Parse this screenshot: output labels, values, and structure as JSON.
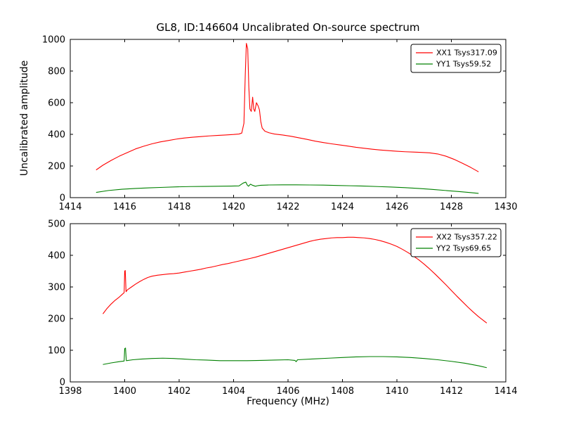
{
  "figure": {
    "title": "GL8, ID:146604 Uncalibrated On-source spectrum",
    "xlabel": "Frequency (MHz)",
    "ylabel": "Uncalibrated amplitude"
  },
  "chart_data": [
    {
      "type": "line",
      "title": "GL8, ID:146604 Uncalibrated On-source spectrum",
      "xlabel": "",
      "ylabel": "Uncalibrated amplitude",
      "xlim": [
        1414,
        1430
      ],
      "ylim": [
        0,
        1000
      ],
      "xticks": [
        1414,
        1416,
        1418,
        1420,
        1422,
        1424,
        1426,
        1428,
        1430
      ],
      "yticks": [
        0,
        200,
        400,
        600,
        800,
        1000
      ],
      "grid": false,
      "legend_position": "upper right",
      "series": [
        {
          "name": "XX1 Tsys317.09",
          "color": "#ff0000",
          "x": [
            1414.95,
            1415.2,
            1415.5,
            1415.8,
            1416.1,
            1416.4,
            1416.7,
            1417.0,
            1417.3,
            1417.6,
            1417.9,
            1418.2,
            1418.5,
            1418.8,
            1419.1,
            1419.4,
            1419.7,
            1420.0,
            1420.2,
            1420.3,
            1420.38,
            1420.43,
            1420.47,
            1420.52,
            1420.56,
            1420.6,
            1420.65,
            1420.7,
            1420.74,
            1420.78,
            1420.84,
            1420.9,
            1420.95,
            1421.0,
            1421.05,
            1421.15,
            1421.3,
            1421.5,
            1421.8,
            1422.1,
            1422.4,
            1422.7,
            1423.0,
            1423.3,
            1423.6,
            1423.9,
            1424.2,
            1424.5,
            1424.8,
            1425.1,
            1425.4,
            1425.7,
            1426.0,
            1426.3,
            1426.6,
            1426.9,
            1427.2,
            1427.5,
            1427.8,
            1428.1,
            1428.4,
            1428.7,
            1429.0
          ],
          "y": [
            175,
            205,
            235,
            262,
            285,
            308,
            325,
            340,
            352,
            361,
            370,
            377,
            382,
            386,
            390,
            393,
            396,
            399,
            402,
            408,
            470,
            780,
            975,
            940,
            700,
            560,
            545,
            635,
            560,
            545,
            600,
            580,
            555,
            480,
            440,
            420,
            410,
            402,
            396,
            388,
            378,
            368,
            357,
            348,
            340,
            333,
            326,
            318,
            312,
            306,
            301,
            297,
            293,
            290,
            288,
            286,
            283,
            276,
            262,
            242,
            218,
            192,
            163
          ]
        },
        {
          "name": "YY1 Tsys59.52",
          "color": "#008000",
          "x": [
            1414.95,
            1415.4,
            1415.9,
            1416.4,
            1416.9,
            1417.4,
            1417.9,
            1418.4,
            1418.9,
            1419.4,
            1419.9,
            1420.2,
            1420.35,
            1420.45,
            1420.5,
            1420.55,
            1420.62,
            1420.7,
            1420.8,
            1420.9,
            1421.0,
            1421.3,
            1421.8,
            1422.3,
            1422.8,
            1423.3,
            1423.8,
            1424.3,
            1424.8,
            1425.3,
            1425.8,
            1426.3,
            1426.8,
            1427.3,
            1427.8,
            1428.3,
            1428.7,
            1429.0
          ],
          "y": [
            33,
            45,
            53,
            58,
            62,
            65,
            68,
            70,
            71,
            72,
            73,
            74,
            92,
            98,
            80,
            72,
            85,
            78,
            72,
            76,
            78,
            80,
            81,
            81,
            80,
            79,
            77,
            75,
            73,
            70,
            67,
            63,
            58,
            52,
            45,
            38,
            32,
            27
          ]
        }
      ]
    },
    {
      "type": "line",
      "title": "",
      "xlabel": "Frequency (MHz)",
      "ylabel": "",
      "xlim": [
        1398,
        1414
      ],
      "ylim": [
        0,
        500
      ],
      "xticks": [
        1398,
        1400,
        1402,
        1404,
        1406,
        1408,
        1410,
        1412,
        1414
      ],
      "yticks": [
        0,
        100,
        200,
        300,
        400,
        500
      ],
      "grid": false,
      "legend_position": "upper right",
      "series": [
        {
          "name": "XX2 Tsys357.22",
          "color": "#ff0000",
          "x": [
            1399.2,
            1399.35,
            1399.5,
            1399.65,
            1399.8,
            1399.9,
            1399.98,
            1400.0,
            1400.02,
            1400.05,
            1400.1,
            1400.25,
            1400.4,
            1400.55,
            1400.7,
            1400.85,
            1401.0,
            1401.2,
            1401.4,
            1401.6,
            1401.8,
            1402.0,
            1402.2,
            1402.4,
            1402.6,
            1402.8,
            1403.0,
            1403.2,
            1403.4,
            1403.6,
            1403.8,
            1404.0,
            1404.2,
            1404.4,
            1404.6,
            1404.8,
            1405.0,
            1405.2,
            1405.4,
            1405.6,
            1405.8,
            1406.0,
            1406.2,
            1406.4,
            1406.6,
            1406.8,
            1407.0,
            1407.2,
            1407.4,
            1407.6,
            1407.8,
            1408.0,
            1408.2,
            1408.4,
            1408.6,
            1408.8,
            1409.0,
            1409.2,
            1409.4,
            1409.6,
            1409.8,
            1410.0,
            1410.2,
            1410.4,
            1410.6,
            1410.8,
            1411.0,
            1411.2,
            1411.4,
            1411.6,
            1411.8,
            1412.0,
            1412.2,
            1412.4,
            1412.6,
            1412.8,
            1413.0,
            1413.15,
            1413.3
          ],
          "y": [
            215,
            232,
            246,
            258,
            268,
            276,
            282,
            350,
            352,
            285,
            291,
            300,
            309,
            317,
            324,
            330,
            334,
            337,
            339,
            341,
            342,
            344,
            347,
            350,
            353,
            356,
            360,
            363,
            367,
            371,
            374,
            378,
            382,
            386,
            390,
            394,
            399,
            404,
            409,
            414,
            419,
            424,
            429,
            434,
            439,
            444,
            448,
            451,
            453,
            455,
            456,
            456,
            457,
            457,
            456,
            455,
            453,
            450,
            446,
            441,
            435,
            428,
            419,
            409,
            398,
            386,
            372,
            357,
            341,
            324,
            307,
            289,
            271,
            254,
            237,
            221,
            206,
            196,
            186
          ]
        },
        {
          "name": "YY2 Tsys69.65",
          "color": "#008000",
          "x": [
            1399.2,
            1399.5,
            1399.8,
            1399.98,
            1400.0,
            1400.03,
            1400.06,
            1400.3,
            1400.6,
            1401.0,
            1401.4,
            1401.8,
            1402.2,
            1402.6,
            1403.0,
            1403.5,
            1404.0,
            1404.5,
            1405.0,
            1405.5,
            1406.0,
            1406.25,
            1406.3,
            1406.35,
            1407.0,
            1407.5,
            1408.0,
            1408.5,
            1409.0,
            1409.5,
            1410.0,
            1410.5,
            1411.0,
            1411.5,
            1412.0,
            1412.5,
            1413.0,
            1413.3
          ],
          "y": [
            55,
            60,
            64,
            66,
            105,
            107,
            67,
            70,
            72,
            74,
            75,
            74,
            72,
            70,
            69,
            67,
            67,
            67,
            68,
            69,
            70,
            68,
            64,
            70,
            73,
            75,
            77,
            79,
            80,
            80,
            79,
            77,
            74,
            70,
            65,
            59,
            51,
            45
          ]
        }
      ]
    }
  ]
}
